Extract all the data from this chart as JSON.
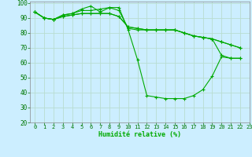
{
  "xlabel": "Humidité relative (%)",
  "xlim": [
    -0.5,
    23
  ],
  "ylim": [
    20,
    101
  ],
  "xticks": [
    0,
    1,
    2,
    3,
    4,
    5,
    6,
    7,
    8,
    9,
    10,
    11,
    12,
    13,
    14,
    15,
    16,
    17,
    18,
    19,
    20,
    21,
    22,
    23
  ],
  "yticks": [
    20,
    30,
    40,
    50,
    60,
    70,
    80,
    90,
    100
  ],
  "background_color": "#cceeff",
  "grid_color": "#aaddcc",
  "line_color": "#00aa00",
  "line1_x": [
    0,
    1,
    2,
    3,
    4,
    5,
    6,
    7,
    8,
    9,
    10,
    11,
    12,
    13,
    14,
    15,
    16,
    17,
    18,
    19,
    20,
    21,
    22
  ],
  "line1_y": [
    94,
    90,
    89,
    92,
    93,
    96,
    98,
    94,
    97,
    97,
    82,
    62,
    38,
    37,
    36,
    36,
    36,
    38,
    42,
    51,
    64,
    63,
    63
  ],
  "line2_x": [
    0,
    1,
    2,
    3,
    4,
    5,
    6,
    7,
    8,
    9,
    10,
    11,
    12,
    13,
    14,
    15,
    16,
    17,
    18,
    19,
    20,
    21,
    22
  ],
  "line2_y": [
    94,
    90,
    89,
    92,
    93,
    95,
    95,
    96,
    97,
    95,
    83,
    82,
    82,
    82,
    82,
    82,
    80,
    78,
    77,
    76,
    65,
    63,
    63
  ],
  "line3_x": [
    0,
    1,
    2,
    3,
    4,
    5,
    6,
    7,
    8,
    9,
    10,
    11,
    12,
    13,
    14,
    15,
    16,
    17,
    18,
    19,
    20,
    21,
    22
  ],
  "line3_y": [
    94,
    90,
    89,
    91,
    92,
    93,
    93,
    93,
    93,
    91,
    84,
    83,
    82,
    82,
    82,
    82,
    80,
    78,
    77,
    76,
    74,
    72,
    70
  ],
  "line4_x": [
    0,
    1,
    2,
    3,
    4,
    5,
    6,
    7,
    8,
    9,
    10,
    11,
    12,
    13,
    14,
    15,
    16,
    17,
    18,
    19,
    20,
    21,
    22
  ],
  "line4_y": [
    94,
    90,
    89,
    91,
    92,
    93,
    93,
    93,
    93,
    91,
    84,
    83,
    82,
    82,
    82,
    82,
    80,
    78,
    77,
    76,
    74,
    72,
    70
  ]
}
